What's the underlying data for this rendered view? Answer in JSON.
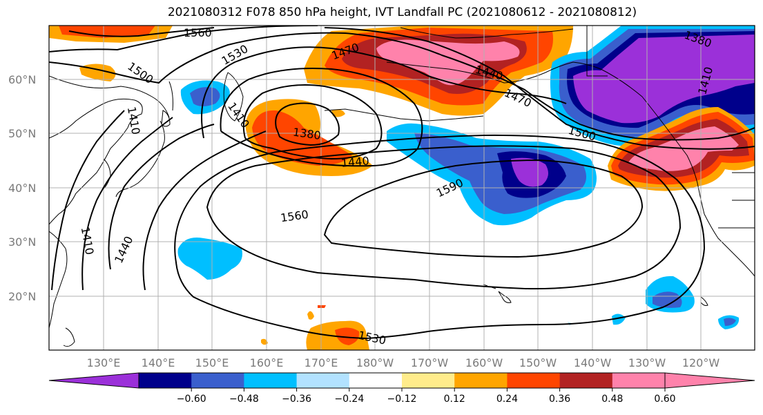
{
  "title": "2021080312 F078 850 hPa height, IVT Landfall PC (2021080612 - 2021080812)",
  "lat_labels": [
    "60°N",
    "50°N",
    "40°N",
    "30°N",
    "20°N"
  ],
  "lon_labels": [
    "130°E",
    "140°E",
    "150°E",
    "160°E",
    "170°E",
    "180°W",
    "170°W",
    "160°W",
    "150°W",
    "140°W",
    "130°W",
    "120°W"
  ],
  "colorbar": {
    "ticks": [
      "−0.60",
      "−0.48",
      "−0.36",
      "−0.24",
      "−0.12",
      "0.12",
      "0.24",
      "0.36",
      "0.48",
      "0.60"
    ],
    "colors": [
      "#9b30d9",
      "#00008b",
      "#3a5fcd",
      "#00bfff",
      "#b2e2ff",
      "#ffffff",
      "#ffec8b",
      "#ffa500",
      "#ff4500",
      "#b22222",
      "#ff82ab",
      "#ff82ab"
    ]
  },
  "contour_labels": [
    "1560",
    "1530",
    "1470",
    "1500",
    "1440",
    "1410",
    "1410",
    "1380",
    "1440",
    "1470",
    "1500",
    "1590",
    "1560",
    "1440",
    "1410",
    "1530",
    "1380",
    "1410"
  ]
}
